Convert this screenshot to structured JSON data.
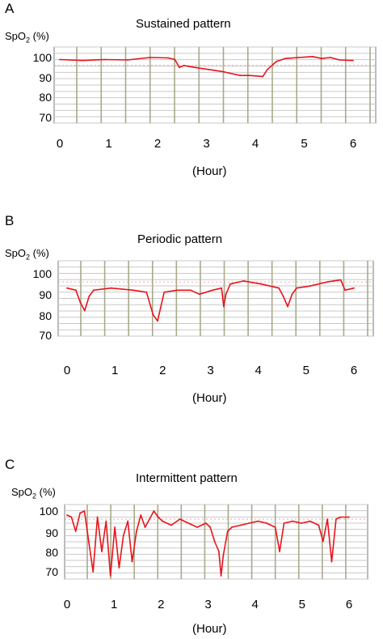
{
  "chart_data": [
    {
      "type": "line",
      "panel": "A",
      "title": "Sustained pattern",
      "ylabel": "SpO2 (%)",
      "ylabel_parts": {
        "pre": "SpO",
        "sub": "2",
        "post": " (%)"
      },
      "xlabel": "(Hour)",
      "x_ticks": [
        "0",
        "1",
        "2",
        "3",
        "4",
        "5",
        "6"
      ],
      "y_ticks": [
        "100",
        "90",
        "80",
        "70"
      ],
      "xlim": [
        0,
        6.5
      ],
      "ylim": [
        66,
        103
      ],
      "grid": true,
      "series": [
        {
          "color": "#e8141b",
          "x": [
            0,
            0.5,
            1,
            1.5,
            2,
            2.4,
            2.55,
            2.65,
            2.75,
            3.0,
            3.3,
            3.6,
            3.9,
            4.0,
            4.2,
            4.5,
            4.6,
            4.8,
            5.0,
            5.3,
            5.6,
            5.8,
            6.0,
            6.2,
            6.5
          ],
          "y": [
            99,
            98.5,
            99,
            98.8,
            100,
            99.8,
            99,
            95,
            96,
            95,
            94,
            93,
            91.5,
            91,
            91,
            90.5,
            94,
            98,
            99.5,
            100,
            100.5,
            99.5,
            100,
            98.8,
            98.5
          ]
        }
      ]
    },
    {
      "type": "line",
      "panel": "B",
      "title": "Periodic pattern",
      "ylabel": "SpO2 (%)",
      "ylabel_parts": {
        "pre": "SpO",
        "sub": "2",
        "post": " (%)"
      },
      "xlabel": "(Hour)",
      "x_ticks": [
        "0",
        "1",
        "2",
        "3",
        "4",
        "5",
        "6"
      ],
      "y_ticks": [
        "100",
        "90",
        "80",
        "70"
      ],
      "xlim": [
        0,
        6.5
      ],
      "ylim": [
        66,
        103
      ],
      "grid": true,
      "series": [
        {
          "color": "#e8141b",
          "x": [
            0,
            0.2,
            0.3,
            0.4,
            0.5,
            0.6,
            1.0,
            1.5,
            1.8,
            1.95,
            2.05,
            2.2,
            2.5,
            2.8,
            3.0,
            3.3,
            3.5,
            3.55,
            3.6,
            3.7,
            4.0,
            4.4,
            4.8,
            4.9,
            5.0,
            5.1,
            5.2,
            5.5,
            5.9,
            6.2,
            6.3,
            6.5
          ],
          "y": [
            93,
            92,
            86,
            82,
            89,
            92,
            93,
            92,
            91,
            80,
            77,
            91,
            92,
            92,
            90,
            92,
            93,
            84,
            90,
            95,
            96.5,
            95,
            93,
            89,
            84,
            90,
            93,
            94,
            96,
            97,
            92,
            93
          ]
        }
      ]
    },
    {
      "type": "line",
      "panel": "C",
      "title": "Intermittent pattern",
      "ylabel": "SpO2 (%)",
      "ylabel_parts": {
        "pre": "SpO",
        "sub": "2",
        "post": " (%)"
      },
      "xlabel": "(Hour)",
      "x_ticks": [
        "0",
        "1",
        "2",
        "3",
        "4",
        "5",
        "6"
      ],
      "y_ticks": [
        "100",
        "90",
        "80",
        "70"
      ],
      "xlim": [
        0,
        6.5
      ],
      "ylim": [
        66,
        103
      ],
      "grid": true,
      "series": [
        {
          "color": "#e8141b",
          "x": [
            0,
            0.1,
            0.2,
            0.3,
            0.4,
            0.5,
            0.6,
            0.7,
            0.8,
            0.9,
            1.0,
            1.1,
            1.2,
            1.3,
            1.4,
            1.5,
            1.6,
            1.7,
            1.8,
            1.9,
            2.0,
            2.1,
            2.2,
            2.4,
            2.6,
            2.8,
            3.0,
            3.2,
            3.3,
            3.4,
            3.5,
            3.55,
            3.6,
            3.7,
            3.8,
            4.0,
            4.2,
            4.4,
            4.6,
            4.8,
            4.9,
            5.0,
            5.2,
            5.4,
            5.6,
            5.8,
            5.9,
            6.0,
            6.1,
            6.2,
            6.3,
            6.5
          ],
          "y": [
            98,
            97,
            90,
            99,
            100,
            85,
            70,
            97,
            80,
            95,
            68,
            92,
            72,
            88,
            95,
            75,
            90,
            98,
            92,
            96,
            100,
            97,
            95,
            93,
            96,
            94,
            92,
            94,
            92,
            85,
            80,
            68,
            78,
            90,
            92,
            93,
            94,
            95,
            94,
            92,
            80,
            94,
            95,
            94,
            95,
            93,
            85,
            96,
            75,
            96,
            97,
            97
          ]
        }
      ]
    }
  ]
}
